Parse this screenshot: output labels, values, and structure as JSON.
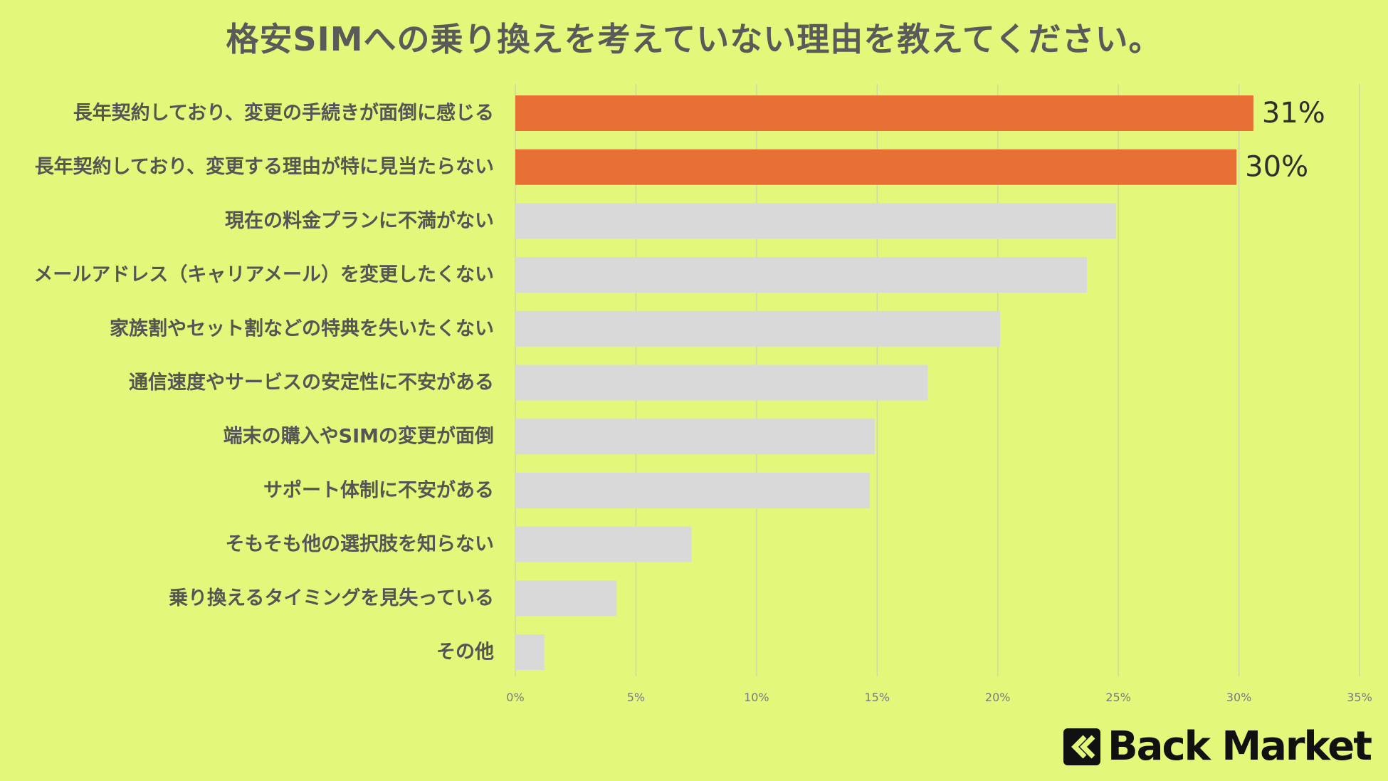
{
  "colors": {
    "background": "#e3f77a",
    "highlight": "#e87034",
    "bar": "#d9d9d9",
    "grid": "#cfd9a5",
    "logo": "#111111"
  },
  "logo": {
    "icon": "back-market-chevrons-icon",
    "text": "Back Market"
  },
  "chart_data": {
    "type": "bar",
    "orientation": "horizontal",
    "title": "格安SIMへの乗り換えを考えていない理由を教えてください。",
    "categories": [
      "長年契約しており、変更の手続きが面倒に感じる",
      "長年契約しており、変更する理由が特に見当たらない",
      "現在の料金プランに不満がない",
      "メールアドレス（キャリアメール）を変更したくない",
      "家族割やセット割などの特典を失いたくない",
      "通信速度やサービスの安定性に不安がある",
      "端末の購入やSIMの変更が面倒",
      "サポート体制に不安がある",
      "そもそも他の選択肢を知らない",
      "乗り換えるタイミングを見失っている",
      "その他"
    ],
    "values": [
      30.6,
      29.9,
      24.9,
      23.7,
      20.1,
      17.1,
      14.9,
      14.7,
      7.3,
      4.2,
      1.2
    ],
    "highlighted": [
      true,
      true,
      false,
      false,
      false,
      false,
      false,
      false,
      false,
      false,
      false
    ],
    "data_labels": [
      "31%",
      "30%",
      "",
      "",
      "",
      "",
      "",
      "",
      "",
      "",
      ""
    ],
    "xlim": [
      0,
      35
    ],
    "xticks": [
      0,
      5,
      10,
      15,
      20,
      25,
      30,
      35
    ],
    "xtick_labels": [
      "0%",
      "5%",
      "10%",
      "15%",
      "20%",
      "25%",
      "30%",
      "35%"
    ],
    "grid": true,
    "legend": "none",
    "xlabel": "",
    "ylabel": ""
  }
}
